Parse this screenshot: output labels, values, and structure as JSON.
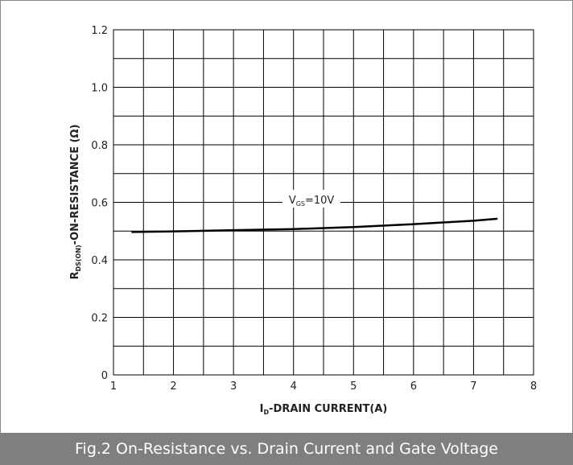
{
  "chart_data": {
    "type": "line",
    "caption": "Fig.2 On-Resistance vs. Drain Current and Gate Voltage",
    "xlabel": {
      "main": "I",
      "sub": "D",
      "rest": "-DRAIN CURRENT(A)"
    },
    "ylabel": {
      "main": "R",
      "sub": "DS(ON)",
      "rest": "-ON-RESISTANCE (Ω)"
    },
    "annotation": {
      "main": "V",
      "sub": "GS",
      "rest": "=10V"
    },
    "x": [
      1.3,
      2,
      3,
      4,
      5,
      6,
      7,
      7.4
    ],
    "series": [
      {
        "color": "#000000",
        "values": [
          0.497,
          0.499,
          0.503,
          0.507,
          0.514,
          0.524,
          0.536,
          0.543
        ]
      }
    ],
    "xlim": [
      1,
      8
    ],
    "xticks": [
      1,
      2,
      3,
      4,
      5,
      6,
      7,
      8
    ],
    "ylim": [
      0,
      1.2
    ],
    "yticks": [
      0,
      0.2,
      0.4,
      0.6,
      0.8,
      {
        "value": 1,
        "label": "1.0"
      },
      1.2
    ],
    "grid": true,
    "minor_grid": true
  }
}
